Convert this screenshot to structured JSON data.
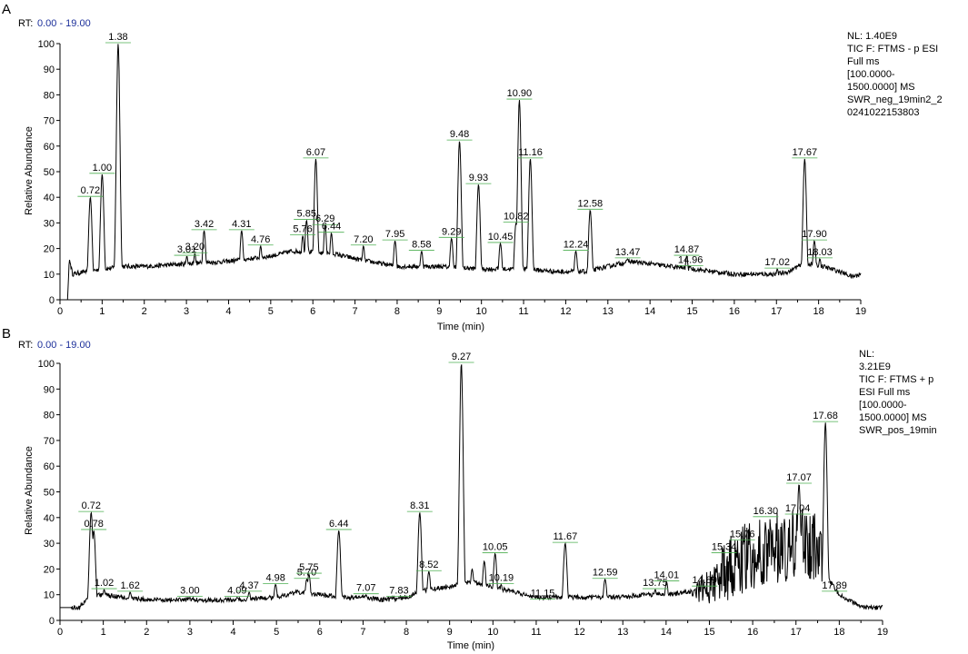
{
  "chart_data": [
    {
      "type": "line",
      "panel_letter": "A",
      "rt_label": "RT:",
      "rt_value": "0.00 - 19.00",
      "ylabel": "Relative Abundance",
      "xlabel": "Time (min)",
      "xlim": [
        0,
        19
      ],
      "ylim": [
        0,
        100
      ],
      "x_ticks": [
        0,
        1,
        2,
        3,
        4,
        5,
        6,
        7,
        8,
        9,
        10,
        11,
        12,
        13,
        14,
        15,
        16,
        17,
        18,
        19
      ],
      "y_ticks": [
        0,
        10,
        20,
        30,
        40,
        50,
        60,
        70,
        80,
        90,
        100
      ],
      "info_lines": [
        "NL: 1.40E9",
        "TIC F: FTMS - p ESI",
        "Full ms",
        "[100.0000-",
        "1500.0000]  MS",
        "SWR_neg_19min2_2",
        "0241022153803"
      ],
      "baseline": [
        [
          0,
          0
        ],
        [
          0.18,
          0
        ],
        [
          0.22,
          16
        ],
        [
          0.3,
          10
        ],
        [
          0.6,
          11
        ],
        [
          1.5,
          13
        ],
        [
          2,
          13
        ],
        [
          3,
          14
        ],
        [
          4,
          15
        ],
        [
          5,
          17
        ],
        [
          5.5,
          19
        ],
        [
          6.5,
          18
        ],
        [
          7,
          16
        ],
        [
          8,
          13
        ],
        [
          9,
          13
        ],
        [
          10,
          12
        ],
        [
          11,
          12
        ],
        [
          11.8,
          11
        ],
        [
          12.5,
          11
        ],
        [
          13,
          13
        ],
        [
          13.5,
          15
        ],
        [
          14,
          14
        ],
        [
          14.5,
          13
        ],
        [
          15,
          12
        ],
        [
          15.5,
          11
        ],
        [
          16,
          10
        ],
        [
          16.5,
          10
        ],
        [
          17,
          10
        ],
        [
          17.3,
          11
        ],
        [
          17.5,
          13
        ],
        [
          17.8,
          14
        ],
        [
          18.1,
          13
        ],
        [
          18.5,
          11
        ],
        [
          18.8,
          9
        ],
        [
          19,
          10
        ]
      ],
      "peaks": [
        {
          "x": 0.72,
          "y": 40
        },
        {
          "x": 1.0,
          "y": 49
        },
        {
          "x": 1.38,
          "y": 100
        },
        {
          "x": 3.01,
          "y": 17
        },
        {
          "x": 3.2,
          "y": 18
        },
        {
          "x": 3.42,
          "y": 27
        },
        {
          "x": 4.31,
          "y": 27
        },
        {
          "x": 4.76,
          "y": 21
        },
        {
          "x": 5.76,
          "y": 25
        },
        {
          "x": 5.85,
          "y": 31
        },
        {
          "x": 6.07,
          "y": 55
        },
        {
          "x": 6.29,
          "y": 29
        },
        {
          "x": 6.44,
          "y": 26
        },
        {
          "x": 7.2,
          "y": 21
        },
        {
          "x": 7.95,
          "y": 23
        },
        {
          "x": 8.58,
          "y": 19
        },
        {
          "x": 9.29,
          "y": 24
        },
        {
          "x": 9.48,
          "y": 62
        },
        {
          "x": 9.93,
          "y": 45
        },
        {
          "x": 10.45,
          "y": 22
        },
        {
          "x": 10.82,
          "y": 30
        },
        {
          "x": 10.9,
          "y": 78
        },
        {
          "x": 11.16,
          "y": 55
        },
        {
          "x": 12.24,
          "y": 19
        },
        {
          "x": 12.58,
          "y": 35
        },
        {
          "x": 13.47,
          "y": 16
        },
        {
          "x": 14.87,
          "y": 17
        },
        {
          "x": 14.96,
          "y": 13
        },
        {
          "x": 17.02,
          "y": 12
        },
        {
          "x": 17.67,
          "y": 55
        },
        {
          "x": 17.9,
          "y": 23
        },
        {
          "x": 18.03,
          "y": 16
        }
      ],
      "labels": [
        {
          "text": "0.72",
          "x": 0.72,
          "y": 40
        },
        {
          "text": "1.00",
          "x": 1.0,
          "y": 49
        },
        {
          "text": "1.38",
          "x": 1.38,
          "y": 100
        },
        {
          "text": "3.01",
          "x": 3.01,
          "y": 17
        },
        {
          "text": "3.20",
          "x": 3.2,
          "y": 18
        },
        {
          "text": "3.42",
          "x": 3.42,
          "y": 27
        },
        {
          "text": "4.31",
          "x": 4.31,
          "y": 27
        },
        {
          "text": "4.76",
          "x": 4.76,
          "y": 21
        },
        {
          "text": "5.76",
          "x": 5.76,
          "y": 25
        },
        {
          "text": "5.85",
          "x": 5.85,
          "y": 31
        },
        {
          "text": "6.07",
          "x": 6.07,
          "y": 55
        },
        {
          "text": "6.29",
          "x": 6.29,
          "y": 29
        },
        {
          "text": "6.44",
          "x": 6.44,
          "y": 26
        },
        {
          "text": "7.20",
          "x": 7.2,
          "y": 21
        },
        {
          "text": "7.95",
          "x": 7.95,
          "y": 23
        },
        {
          "text": "8.58",
          "x": 8.58,
          "y": 19
        },
        {
          "text": "9.29",
          "x": 9.29,
          "y": 24
        },
        {
          "text": "9.48",
          "x": 9.48,
          "y": 62
        },
        {
          "text": "9.93",
          "x": 9.93,
          "y": 45
        },
        {
          "text": "10.45",
          "x": 10.45,
          "y": 22
        },
        {
          "text": "10.82",
          "x": 10.82,
          "y": 30
        },
        {
          "text": "10.90",
          "x": 10.9,
          "y": 78
        },
        {
          "text": "11.16",
          "x": 11.16,
          "y": 55
        },
        {
          "text": "12.24",
          "x": 12.24,
          "y": 19
        },
        {
          "text": "12.58",
          "x": 12.58,
          "y": 35
        },
        {
          "text": "13.47",
          "x": 13.47,
          "y": 16
        },
        {
          "text": "14.87",
          "x": 14.87,
          "y": 17
        },
        {
          "text": "14.96",
          "x": 14.96,
          "y": 13
        },
        {
          "text": "17.02",
          "x": 17.02,
          "y": 12
        },
        {
          "text": "17.67",
          "x": 17.67,
          "y": 55
        },
        {
          "text": "17.90",
          "x": 17.9,
          "y": 23
        },
        {
          "text": "18.03",
          "x": 18.03,
          "y": 16
        }
      ]
    },
    {
      "type": "line",
      "panel_letter": "B",
      "rt_label": "RT:",
      "rt_value": "0.00 - 19.00",
      "ylabel": "Relative Abundance",
      "xlabel": "Time (min)",
      "xlim": [
        0,
        19
      ],
      "ylim": [
        0,
        100
      ],
      "x_ticks": [
        0,
        1,
        2,
        3,
        4,
        5,
        6,
        7,
        8,
        9,
        10,
        11,
        12,
        13,
        14,
        15,
        16,
        17,
        18,
        19
      ],
      "y_ticks": [
        0,
        10,
        20,
        30,
        40,
        50,
        60,
        70,
        80,
        90,
        100
      ],
      "info_lines": [
        "NL:",
        "3.21E9",
        "TIC F: FTMS + p",
        "ESI Full ms",
        "[100.0000-",
        "1500.0000]  MS",
        "SWR_pos_19min"
      ],
      "baseline": [
        [
          0,
          5
        ],
        [
          0.35,
          5
        ],
        [
          0.45,
          5
        ],
        [
          0.55,
          7
        ],
        [
          0.65,
          9
        ],
        [
          0.9,
          10
        ],
        [
          1.5,
          9
        ],
        [
          2,
          8
        ],
        [
          3,
          8
        ],
        [
          4,
          8
        ],
        [
          5,
          9
        ],
        [
          5.5,
          11
        ],
        [
          6,
          10
        ],
        [
          6.5,
          9
        ],
        [
          7,
          9
        ],
        [
          7.5,
          8
        ],
        [
          8,
          9
        ],
        [
          8.5,
          12
        ],
        [
          9,
          13
        ],
        [
          9.5,
          15
        ],
        [
          10,
          13
        ],
        [
          10.5,
          11
        ],
        [
          11,
          9
        ],
        [
          11.5,
          9
        ],
        [
          12,
          9
        ],
        [
          12.5,
          9
        ],
        [
          13,
          9
        ],
        [
          13.5,
          10
        ],
        [
          14,
          10
        ],
        [
          14.5,
          11
        ],
        [
          14.8,
          12
        ],
        [
          15,
          14
        ],
        [
          15.3,
          18
        ],
        [
          15.6,
          22
        ],
        [
          16,
          25
        ],
        [
          16.5,
          28
        ],
        [
          17,
          30
        ],
        [
          17.4,
          30
        ],
        [
          17.6,
          25
        ],
        [
          17.8,
          15
        ],
        [
          18,
          10
        ],
        [
          18.3,
          7
        ],
        [
          18.6,
          5
        ],
        [
          19,
          5
        ]
      ],
      "peaks": [
        {
          "x": 0.72,
          "y": 42
        },
        {
          "x": 0.78,
          "y": 35
        },
        {
          "x": 1.02,
          "y": 12
        },
        {
          "x": 1.62,
          "y": 11
        },
        {
          "x": 3.0,
          "y": 9
        },
        {
          "x": 4.09,
          "y": 9
        },
        {
          "x": 4.37,
          "y": 11
        },
        {
          "x": 4.98,
          "y": 14
        },
        {
          "x": 5.7,
          "y": 16
        },
        {
          "x": 5.75,
          "y": 18
        },
        {
          "x": 6.44,
          "y": 35
        },
        {
          "x": 7.07,
          "y": 10
        },
        {
          "x": 7.83,
          "y": 9
        },
        {
          "x": 8.31,
          "y": 42
        },
        {
          "x": 8.52,
          "y": 19
        },
        {
          "x": 9.27,
          "y": 100
        },
        {
          "x": 9.52,
          "y": 20
        },
        {
          "x": 9.8,
          "y": 23
        },
        {
          "x": 10.05,
          "y": 26
        },
        {
          "x": 10.19,
          "y": 14
        },
        {
          "x": 11.15,
          "y": 8
        },
        {
          "x": 11.67,
          "y": 30
        },
        {
          "x": 12.59,
          "y": 16
        },
        {
          "x": 13.75,
          "y": 12
        },
        {
          "x": 14.01,
          "y": 15
        },
        {
          "x": 14.89,
          "y": 13
        },
        {
          "x": 17.07,
          "y": 53
        },
        {
          "x": 17.68,
          "y": 77
        },
        {
          "x": 17.89,
          "y": 11
        }
      ],
      "labels": [
        {
          "text": "0.72",
          "x": 0.72,
          "y": 42
        },
        {
          "text": "0.78",
          "x": 0.78,
          "y": 35
        },
        {
          "text": "1.02",
          "x": 1.02,
          "y": 12
        },
        {
          "text": "1.62",
          "x": 1.62,
          "y": 11
        },
        {
          "text": "3.00",
          "x": 3.0,
          "y": 9
        },
        {
          "text": "4.09",
          "x": 4.09,
          "y": 9
        },
        {
          "text": "4.37",
          "x": 4.37,
          "y": 11
        },
        {
          "text": "4.98",
          "x": 4.98,
          "y": 14
        },
        {
          "text": "5.70",
          "x": 5.7,
          "y": 16
        },
        {
          "text": "5.75",
          "x": 5.75,
          "y": 18
        },
        {
          "text": "6.44",
          "x": 6.44,
          "y": 35
        },
        {
          "text": "7.07",
          "x": 7.07,
          "y": 10
        },
        {
          "text": "7.83",
          "x": 7.83,
          "y": 9
        },
        {
          "text": "8.31",
          "x": 8.31,
          "y": 42
        },
        {
          "text": "8.52",
          "x": 8.52,
          "y": 19
        },
        {
          "text": "9.27",
          "x": 9.27,
          "y": 100
        },
        {
          "text": "10.05",
          "x": 10.05,
          "y": 26
        },
        {
          "text": "10.19",
          "x": 10.19,
          "y": 14
        },
        {
          "text": "11.15",
          "x": 11.15,
          "y": 8
        },
        {
          "text": "11.67",
          "x": 11.67,
          "y": 30
        },
        {
          "text": "12.59",
          "x": 12.59,
          "y": 16
        },
        {
          "text": "13.75",
          "x": 13.75,
          "y": 12
        },
        {
          "text": "14.01",
          "x": 14.01,
          "y": 15
        },
        {
          "text": "14.89",
          "x": 14.89,
          "y": 13
        },
        {
          "text": "15.34",
          "x": 15.34,
          "y": 26
        },
        {
          "text": "15.76",
          "x": 15.76,
          "y": 31
        },
        {
          "text": "16.30",
          "x": 16.3,
          "y": 40
        },
        {
          "text": "17.04",
          "x": 17.04,
          "y": 41
        },
        {
          "text": "17.07",
          "x": 17.07,
          "y": 53
        },
        {
          "text": "17.68",
          "x": 17.68,
          "y": 77
        },
        {
          "text": "17.89",
          "x": 17.89,
          "y": 11
        }
      ]
    }
  ]
}
